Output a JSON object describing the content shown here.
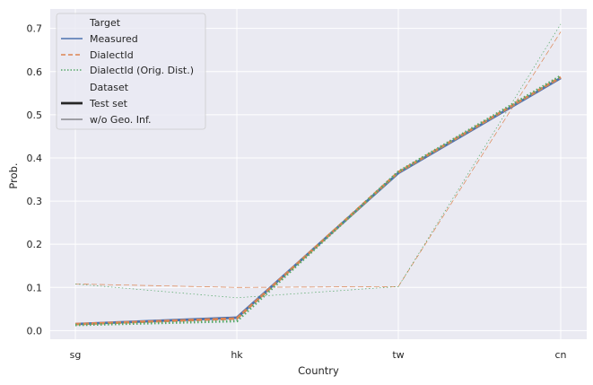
{
  "chart_data": {
    "type": "line",
    "categories": [
      "sg",
      "hk",
      "tw",
      "cn"
    ],
    "xlabel": "Country",
    "ylabel": "Prob.",
    "ylim": [
      -0.02,
      0.745
    ],
    "yticks": [
      0.0,
      0.1,
      0.2,
      0.3,
      0.4,
      0.5,
      0.6,
      0.7
    ],
    "ytick_labels": [
      "0.0",
      "0.1",
      "0.2",
      "0.3",
      "0.4",
      "0.5",
      "0.6",
      "0.7"
    ],
    "grid": true,
    "legend_position": "top-left",
    "legend": {
      "hue_title": "Target",
      "hue_entries": [
        {
          "name": "Measured",
          "color": "#4c72b0",
          "dash": "solid"
        },
        {
          "name": "DialectId",
          "color": "#dd8452",
          "dash": "dashed"
        },
        {
          "name": "DialectId (Orig. Dist.)",
          "color": "#55a868",
          "dash": "dotted"
        }
      ],
      "size_title": "Dataset",
      "size_entries": [
        {
          "name": "Test set",
          "width": "thick"
        },
        {
          "name": "w/o Geo. Inf.",
          "width": "thin"
        }
      ]
    },
    "series": [
      {
        "target": "Measured",
        "dataset": "Test set",
        "color": "#4c72b0",
        "dash": "solid",
        "width": "thick",
        "values": [
          0.015,
          0.03,
          0.365,
          0.585
        ]
      },
      {
        "target": "DialectId",
        "dataset": "Test set",
        "color": "#dd8452",
        "dash": "dashed",
        "width": "thick",
        "values": [
          0.015,
          0.028,
          0.367,
          0.587
        ]
      },
      {
        "target": "DialectId (Orig. Dist.)",
        "dataset": "Test set",
        "color": "#55a868",
        "dash": "dotted",
        "width": "thick",
        "values": [
          0.013,
          0.022,
          0.368,
          0.59
        ]
      },
      {
        "target": "DialectId",
        "dataset": "w/o Geo. Inf.",
        "color": "#dd8452",
        "dash": "dashed",
        "width": "thin",
        "values": [
          0.108,
          0.1,
          0.102,
          0.692
        ]
      },
      {
        "target": "DialectId (Orig. Dist.)",
        "dataset": "w/o Geo. Inf.",
        "color": "#55a868",
        "dash": "dotted",
        "width": "thin",
        "values": [
          0.108,
          0.076,
          0.102,
          0.71
        ]
      }
    ]
  }
}
